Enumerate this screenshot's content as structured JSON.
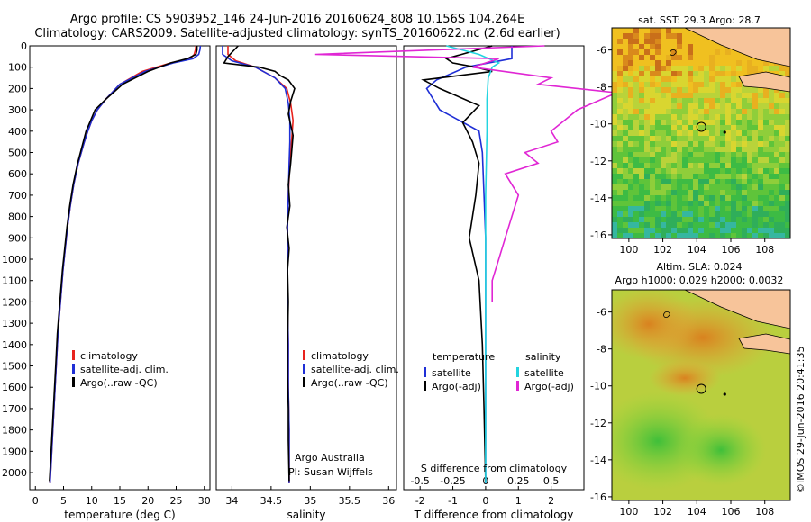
{
  "header": {
    "line1": "Argo profile: CS 5903952_146 24-Jun-2016 20160624_808 10.156S 104.264E",
    "line2": "Climatology: CARS2009. Satellite-adjusted climatology: synTS_20160622.nc (2.6d earlier)"
  },
  "side_note": "©IMOS 29-Jun-2016 20:41:35",
  "colors": {
    "climatology": "#e8231e",
    "satellite": "#1f2fd6",
    "argo": "#000000",
    "satellite_salinity": "#22d4e0",
    "argo_adj_salinity": "#e026d4",
    "land": "#f7c49a"
  },
  "chart_data": [
    {
      "type": "line",
      "name": "temperature-profile",
      "xlabel": "temperature (deg C)",
      "xlim": [
        -1,
        31
      ],
      "xticks": [
        0,
        5,
        10,
        15,
        20,
        25,
        30
      ],
      "ylim": [
        2080,
        0
      ],
      "yticks": [
        0,
        100,
        200,
        300,
        400,
        500,
        600,
        700,
        800,
        900,
        1000,
        1100,
        1200,
        1300,
        1400,
        1500,
        1600,
        1700,
        1800,
        1900,
        2000
      ],
      "legend": [
        "climatology",
        "satellite-adj. clim.",
        "Argo(..raw -QC)"
      ],
      "legend_position": "lower-center",
      "series": [
        {
          "name": "climatology",
          "color_key": "climatology",
          "x": [
            28.5,
            28.4,
            28.2,
            27.5,
            24,
            19,
            15,
            12.5,
            11,
            10,
            9.3,
            8.7,
            7.6,
            6.8,
            6.2,
            5.7,
            5.3,
            4.9,
            4.6,
            4.3,
            4.0,
            3.7,
            3.4,
            3.1,
            2.8,
            2.6
          ],
          "y": [
            0,
            20,
            40,
            60,
            80,
            120,
            180,
            250,
            300,
            350,
            400,
            450,
            550,
            650,
            750,
            850,
            950,
            1050,
            1150,
            1250,
            1350,
            1500,
            1650,
            1800,
            1950,
            2050
          ]
        },
        {
          "name": "satellite-adj. clim.",
          "color_key": "satellite",
          "x": [
            29.3,
            29.2,
            29.0,
            28.0,
            24.5,
            19.5,
            15,
            12.5,
            11,
            10,
            9.3,
            8.7,
            7.6,
            6.8,
            6.2,
            5.7,
            5.3,
            4.9,
            4.6,
            4.3,
            4.0,
            3.7,
            3.4,
            3.1,
            2.8,
            2.6
          ],
          "y": [
            0,
            20,
            40,
            60,
            80,
            120,
            180,
            250,
            300,
            350,
            400,
            450,
            550,
            650,
            750,
            850,
            950,
            1050,
            1150,
            1250,
            1350,
            1500,
            1650,
            1800,
            1950,
            2050
          ]
        },
        {
          "name": "Argo(..raw -QC)",
          "color_key": "argo",
          "x": [
            28.7,
            28.7,
            28.5,
            27.0,
            24,
            20,
            15.5,
            12.5,
            10.6,
            9.8,
            9.0,
            8.5,
            7.5,
            6.7,
            6.1,
            5.6,
            5.2,
            4.8,
            4.5,
            4.2,
            3.9,
            3.6,
            3.3,
            3.0,
            2.7,
            2.5
          ],
          "y": [
            0,
            20,
            40,
            60,
            80,
            120,
            180,
            250,
            300,
            350,
            400,
            450,
            550,
            650,
            750,
            850,
            950,
            1050,
            1150,
            1250,
            1350,
            1500,
            1650,
            1800,
            1950,
            2040
          ]
        }
      ]
    },
    {
      "type": "line",
      "name": "salinity-profile",
      "xlabel": "salinity",
      "xlim": [
        33.8,
        36.1
      ],
      "xticks": [
        34,
        34.5,
        35,
        35.5,
        36
      ],
      "ylim": [
        2080,
        0
      ],
      "legend": [
        "climatology",
        "satellite-adj. clim.",
        "Argo(..raw -QC)"
      ],
      "legend_position": "lower-right",
      "annotation": [
        "Argo Australia",
        "PI: Susan Wijffels"
      ],
      "series": [
        {
          "name": "climatology",
          "color_key": "climatology",
          "x": [
            33.95,
            33.95,
            34.05,
            34.3,
            34.55,
            34.7,
            34.75,
            34.78,
            34.76,
            34.74,
            34.72,
            34.71,
            34.71,
            34.71,
            34.72,
            34.72,
            34.73,
            34.73
          ],
          "y": [
            0,
            40,
            70,
            100,
            150,
            200,
            270,
            350,
            450,
            550,
            700,
            850,
            1000,
            1200,
            1400,
            1600,
            1800,
            2050
          ]
        },
        {
          "name": "satellite-adj. clim.",
          "color_key": "satellite",
          "x": [
            33.88,
            33.88,
            34.0,
            34.3,
            34.55,
            34.68,
            34.72,
            34.74,
            34.74,
            34.73,
            34.72,
            34.71,
            34.71,
            34.71,
            34.72,
            34.72,
            34.73,
            34.73
          ],
          "y": [
            0,
            40,
            70,
            100,
            150,
            200,
            270,
            350,
            450,
            550,
            700,
            850,
            1000,
            1200,
            1400,
            1600,
            1800,
            2050
          ]
        },
        {
          "name": "Argo(..raw -QC)",
          "color_key": "argo",
          "x": [
            34.08,
            33.95,
            33.9,
            34.35,
            34.55,
            34.62,
            34.72,
            34.8,
            34.75,
            34.72,
            34.78,
            34.75,
            34.72,
            34.74,
            34.7,
            34.73,
            34.71,
            34.72,
            34.71,
            34.71,
            34.72,
            34.72,
            34.73
          ],
          "y": [
            0,
            50,
            80,
            100,
            120,
            140,
            160,
            200,
            260,
            320,
            420,
            550,
            650,
            750,
            850,
            950,
            1050,
            1200,
            1400,
            1550,
            1700,
            1850,
            2040
          ]
        }
      ]
    },
    {
      "type": "line",
      "name": "difference-profile",
      "xlabel": "T difference from climatology",
      "xlabel_top": "S difference from climatology",
      "xlim": [
        -2.5,
        3
      ],
      "xticks": [
        -2,
        -1,
        0,
        1,
        2
      ],
      "top_ticks": [
        {
          "value": -0.5,
          "label": "-0.5"
        },
        {
          "value": -0.25,
          "label": "-0.25"
        },
        {
          "value": 0,
          "label": "0"
        },
        {
          "value": 0.25,
          "label": "0.25"
        },
        {
          "value": 0.5,
          "label": "0.5"
        }
      ],
      "ylim": [
        2080,
        0
      ],
      "legend_groups": [
        {
          "heading": "temperature",
          "entries": [
            "satellite",
            "Argo(-adj)"
          ]
        },
        {
          "heading": "salinity",
          "entries": [
            "satellite",
            "Argo(-adj)"
          ]
        }
      ],
      "legend_position": "lower-center",
      "series": [
        {
          "name": "temperature satellite",
          "color_key": "satellite",
          "x": [
            0.8,
            0.8,
            -0.6,
            -1.5,
            -1.8,
            -1.4,
            -0.2,
            -0.1,
            -0.05,
            0,
            0,
            0,
            0,
            0,
            0
          ],
          "y": [
            0,
            60,
            100,
            160,
            200,
            300,
            400,
            500,
            700,
            900,
            1200,
            1500,
            1700,
            1900,
            2050
          ]
        },
        {
          "name": "temperature Argo(-adj)",
          "color_key": "argo",
          "x": [
            0.2,
            -1.2,
            -1.0,
            -0.3,
            0.2,
            -1.9,
            -1.4,
            -0.2,
            -0.7,
            -0.4,
            -0.2,
            -0.3,
            -0.5,
            -0.2,
            -0.1,
            -0.05,
            0
          ],
          "y": [
            0,
            60,
            80,
            100,
            120,
            160,
            200,
            280,
            360,
            450,
            550,
            700,
            900,
            1100,
            1400,
            1700,
            2040
          ]
        },
        {
          "name": "salinity satellite",
          "color_key": "satellite_salinity",
          "x": [
            -0.3,
            -0.05,
            0.1,
            0.05,
            0.02,
            0.01,
            0.01,
            0,
            0,
            0,
            0
          ],
          "y": [
            0,
            40,
            80,
            100,
            150,
            250,
            400,
            700,
            1000,
            1500,
            2050
          ]
        },
        {
          "name": "salinity Argo(-adj)",
          "color_key": "argo_adj_salinity",
          "x": [
            0.45,
            -1.3,
            0.1,
            -0.1,
            0.5,
            0.4,
            1.0,
            0.7,
            0.6,
            0.5,
            0.55,
            0.3,
            0.4,
            0.15,
            0.25,
            0.2,
            0.15,
            0.1,
            0.05,
            0.05
          ],
          "y": [
            0,
            40,
            60,
            100,
            150,
            180,
            220,
            300,
            350,
            400,
            450,
            500,
            550,
            600,
            700,
            800,
            900,
            1000,
            1100,
            1200
          ]
        }
      ]
    },
    {
      "type": "heatmap",
      "name": "sst-map",
      "title": "sat. SST: 29.3 Argo: 28.7",
      "xlim": [
        99,
        109.5
      ],
      "ylim": [
        -16.2,
        -4.8
      ],
      "xticks": [
        100,
        102,
        104,
        106,
        108
      ],
      "yticks": [
        -6,
        -8,
        -10,
        -12,
        -14,
        -16
      ],
      "marker": {
        "lon": 104.264,
        "lat": -10.156
      }
    },
    {
      "type": "heatmap",
      "name": "sla-map",
      "title_lines": [
        "Altim. SLA: 0.024",
        "Argo h1000: 0.029 h2000: 0.0032"
      ],
      "xlim": [
        99,
        109.5
      ],
      "ylim": [
        -16.2,
        -4.8
      ],
      "xticks": [
        100,
        102,
        104,
        106,
        108
      ],
      "yticks": [
        -6,
        -8,
        -10,
        -12,
        -14,
        -16
      ],
      "marker": {
        "lon": 104.264,
        "lat": -10.156
      }
    }
  ]
}
